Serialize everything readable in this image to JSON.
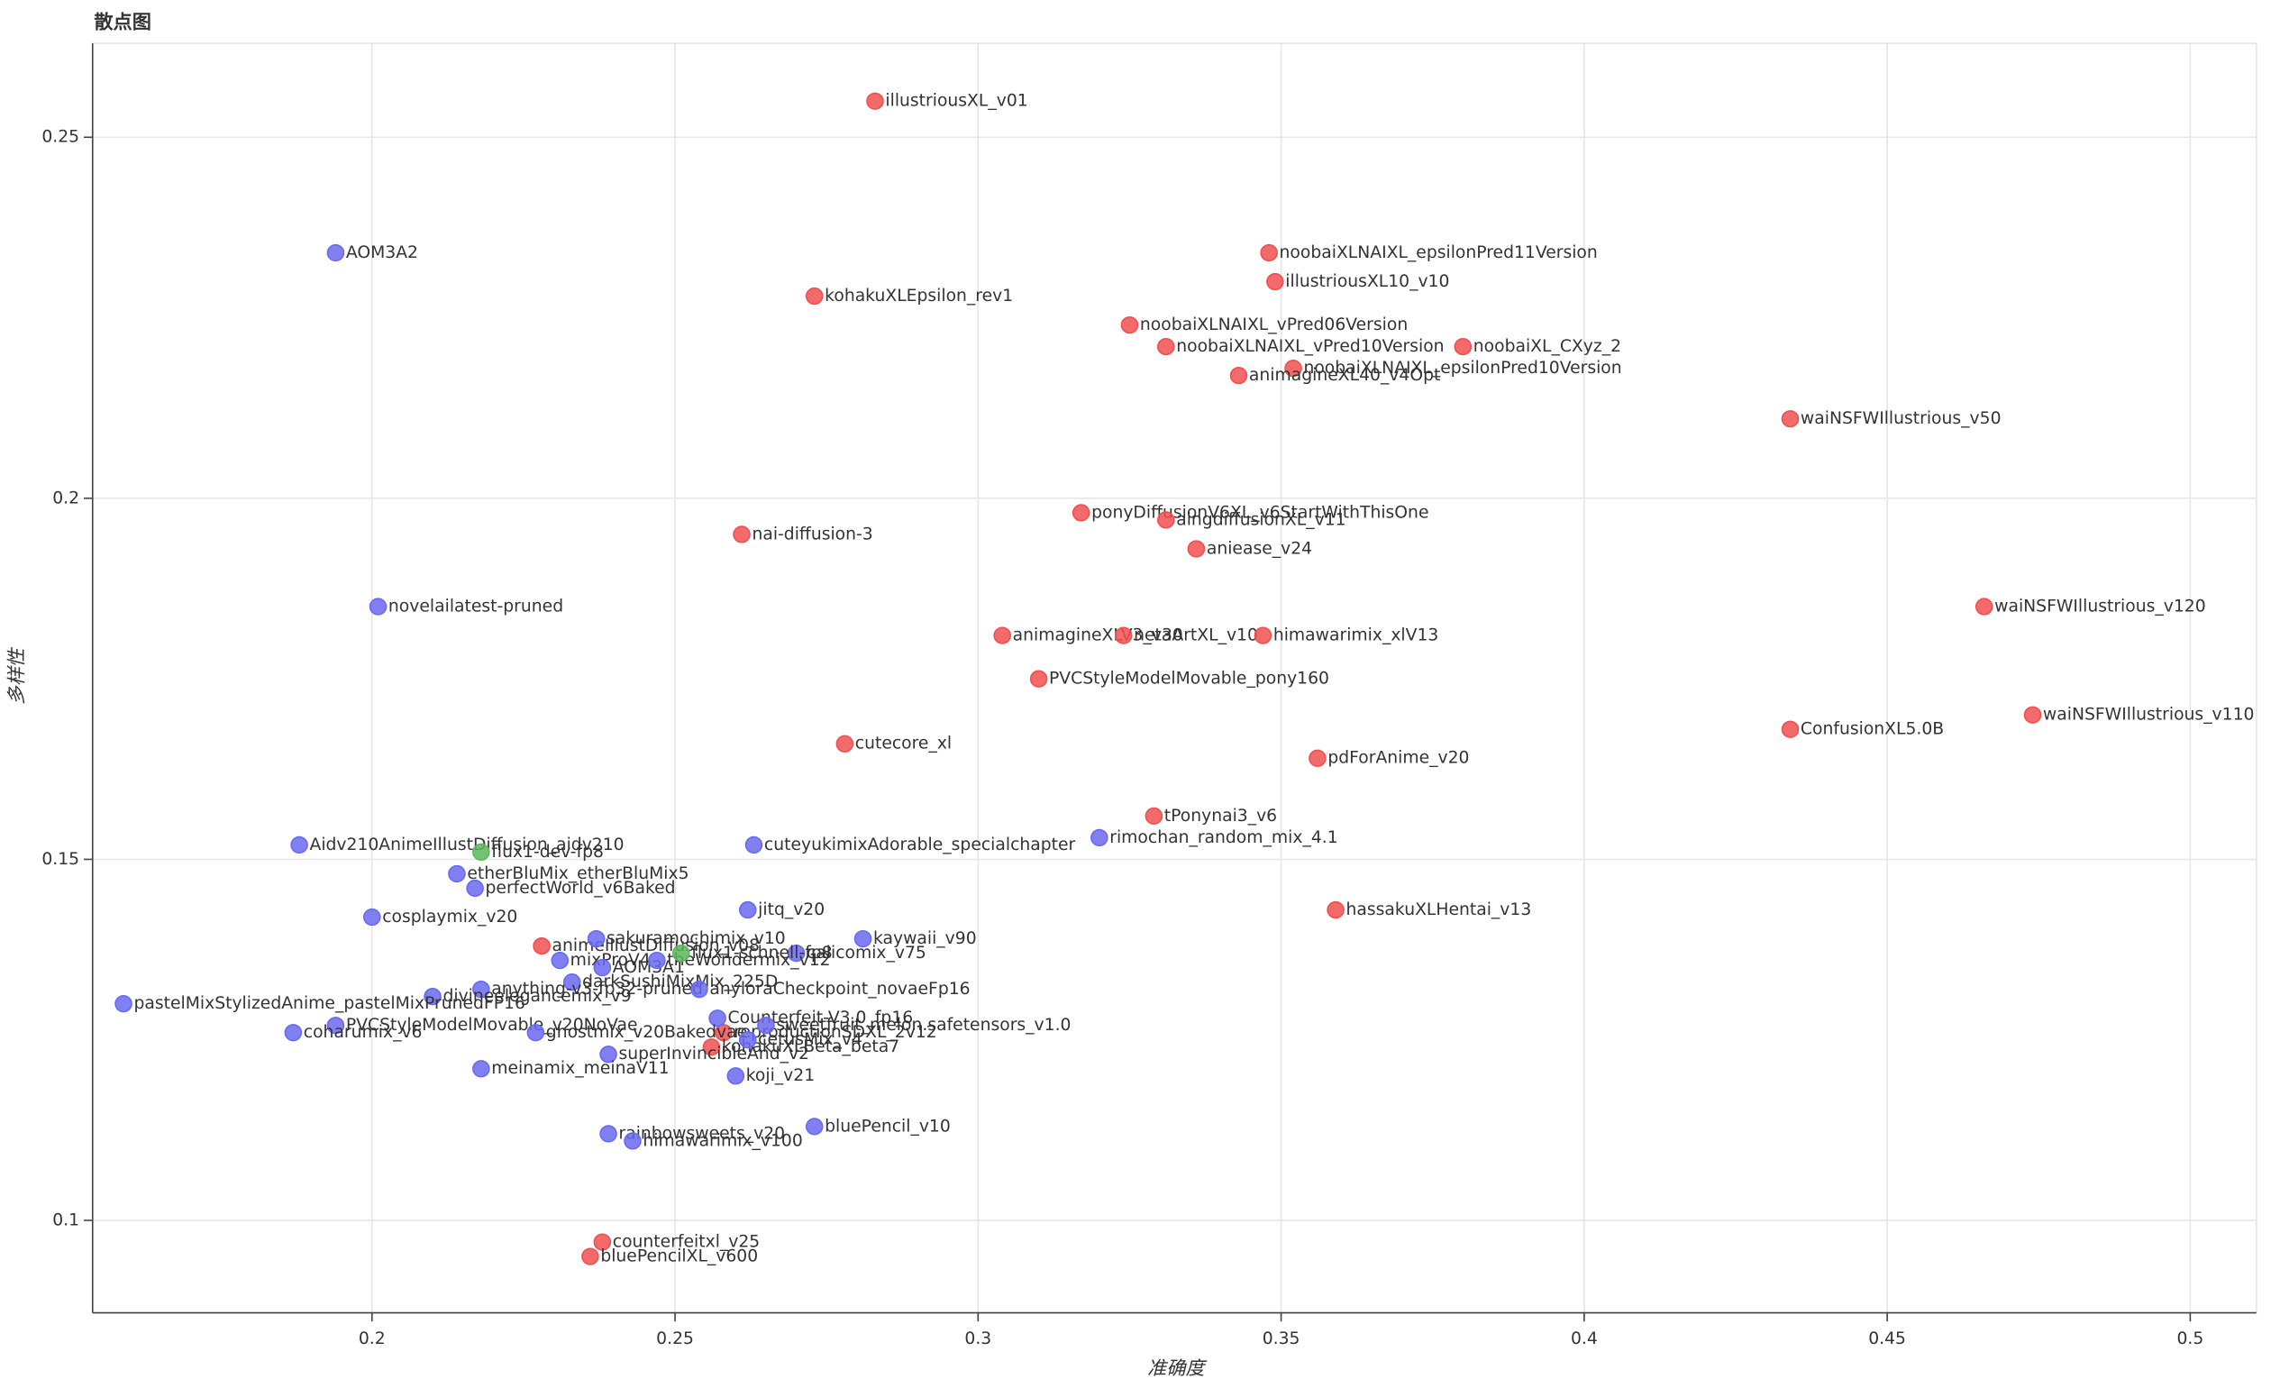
{
  "chart_data": {
    "type": "scatter",
    "title": "散点图",
    "x_label": "准确度",
    "y_label": "多样性",
    "xlim": [
      0.1539,
      0.5109
    ],
    "ylim": [
      0.0872,
      0.263
    ],
    "xticks": [
      0.2,
      0.25,
      0.3,
      0.35,
      0.4,
      0.45,
      0.5
    ],
    "yticks": [
      0.1,
      0.15,
      0.2,
      0.25
    ],
    "grid": true,
    "series": [
      {
        "color": "#f05050",
        "labels": [
          "illustriousXL_v01",
          "noobaiXLNAIXL_epsilonPred11Version",
          "illustriousXL10_v10",
          "kohakuXLEpsilon_rev1",
          "noobaiXLNAIXL_vPred06Version",
          "noobaiXLNAIXL_vPred10Version",
          "noobaiXL_CXyz_2",
          "noobaiXLNAIXL_epsilonPred10Version",
          "animagineXL40_v4Opt",
          "waiNSFWIllustrious_v50",
          "ponyDiffusionV6XL_v6StartWithThisOne",
          "aingdiffusionXL_v11",
          "nai-diffusion-3",
          "aniease_v24",
          "waiNSFWIllustrious_v120",
          "animagineXLV3_v30",
          "netaArtXL_v10",
          "himawarimix_xlV13",
          "PVCStyleModelMovable_pony160",
          "ConfusionXL5.0B",
          "waiNSFWIllustrious_v110",
          "cutecore_xl",
          "pdForAnime_v20",
          "tPonynai3_v6",
          "hassakuXLHentai_v13",
          "animeIllustDiffusion_v08",
          "reproductionSDXL_2v12",
          "kohakuXLBeta_beta7",
          "counterfeitxl_v25",
          "bluePencilXL_v600"
        ],
        "x": [
          0.283,
          0.348,
          0.349,
          0.273,
          0.325,
          0.331,
          0.38,
          0.352,
          0.343,
          0.434,
          0.317,
          0.331,
          0.261,
          0.336,
          0.466,
          0.304,
          0.324,
          0.347,
          0.31,
          0.434,
          0.474,
          0.278,
          0.356,
          0.329,
          0.359,
          0.228,
          0.258,
          0.256,
          0.238,
          0.236
        ],
        "y": [
          0.255,
          0.234,
          0.23,
          0.228,
          0.224,
          0.221,
          0.221,
          0.218,
          0.217,
          0.211,
          0.198,
          0.197,
          0.195,
          0.193,
          0.185,
          0.181,
          0.181,
          0.181,
          0.175,
          0.168,
          0.17,
          0.166,
          0.164,
          0.156,
          0.143,
          0.138,
          0.126,
          0.124,
          0.097,
          0.095
        ]
      },
      {
        "color": "#6a6af0",
        "labels": [
          "AOM3A2",
          "novelailatest-pruned",
          "Aidv210AnimeIllustDiffusion_aidv210",
          "cuteyukimixAdorable_specialchapter",
          "rimochan_random_mix_4.1",
          "etherBluMix_etherBluMix5",
          "perfectWorld_v6Baked",
          "cosplaymix_v20",
          "jitq_v20",
          "sakuramochimix_v10",
          "kaywaii_v90",
          "calicomix_v75",
          "mixProV4",
          "AOM3A1",
          "theWondermix_v12",
          "darkSushiMixMix_225D",
          "anything-v3-fp32-pruned",
          "divineelegancemix_v9",
          "anyloraCheckpoint_novaeFp16",
          "pastelMixStylizedAnime_pastelMixPrunedFP16",
          "Counterfeit-V3.0_fp16",
          "sweetfruit_melon.safetensors_v1.0",
          "PVCStyleModelMovable_v20NoVae",
          "coharumix_v6",
          "ghostmix_v20Bakedvae",
          "cetusMix_v4",
          "superInvincibleAnd_v2",
          "meinamix_meinaV11",
          "koji_v21",
          "rainbowsweets_v20",
          "bluePencil_v10",
          "himawarimix_v100"
        ],
        "x": [
          0.194,
          0.201,
          0.188,
          0.263,
          0.32,
          0.214,
          0.217,
          0.2,
          0.262,
          0.237,
          0.281,
          0.27,
          0.231,
          0.238,
          0.247,
          0.233,
          0.218,
          0.21,
          0.254,
          0.159,
          0.257,
          0.265,
          0.194,
          0.187,
          0.227,
          0.262,
          0.239,
          0.218,
          0.26,
          0.239,
          0.273,
          0.243
        ],
        "y": [
          0.234,
          0.185,
          0.152,
          0.152,
          0.153,
          0.148,
          0.146,
          0.142,
          0.143,
          0.139,
          0.139,
          0.137,
          0.136,
          0.135,
          0.136,
          0.133,
          0.132,
          0.131,
          0.132,
          0.13,
          0.128,
          0.127,
          0.127,
          0.126,
          0.126,
          0.125,
          0.123,
          0.121,
          0.12,
          0.112,
          0.113,
          0.111
        ]
      },
      {
        "color": "#5cb85c",
        "labels": [
          "flux1-dev-fp8",
          "flux1-schnell-fp8"
        ],
        "x": [
          0.218,
          0.251
        ],
        "y": [
          0.151,
          0.137
        ]
      }
    ]
  }
}
